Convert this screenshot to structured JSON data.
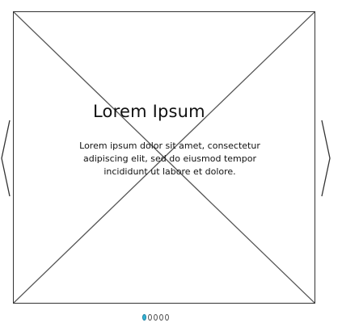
{
  "slider": {
    "caption": {
      "title": "Lorem Ipsum",
      "body": "Lorem ipsum dolor sit amet, consectetur adipiscing elit, sed do eiusmod tempor incididunt ut labore et dolore."
    },
    "image_placeholder_icon": "image-placeholder-icon",
    "prev_icon": "chevron-left-icon",
    "next_icon": "chevron-right-icon",
    "pagination": {
      "count": 5,
      "active_index": 0,
      "active_color": "#36b7d6"
    }
  }
}
